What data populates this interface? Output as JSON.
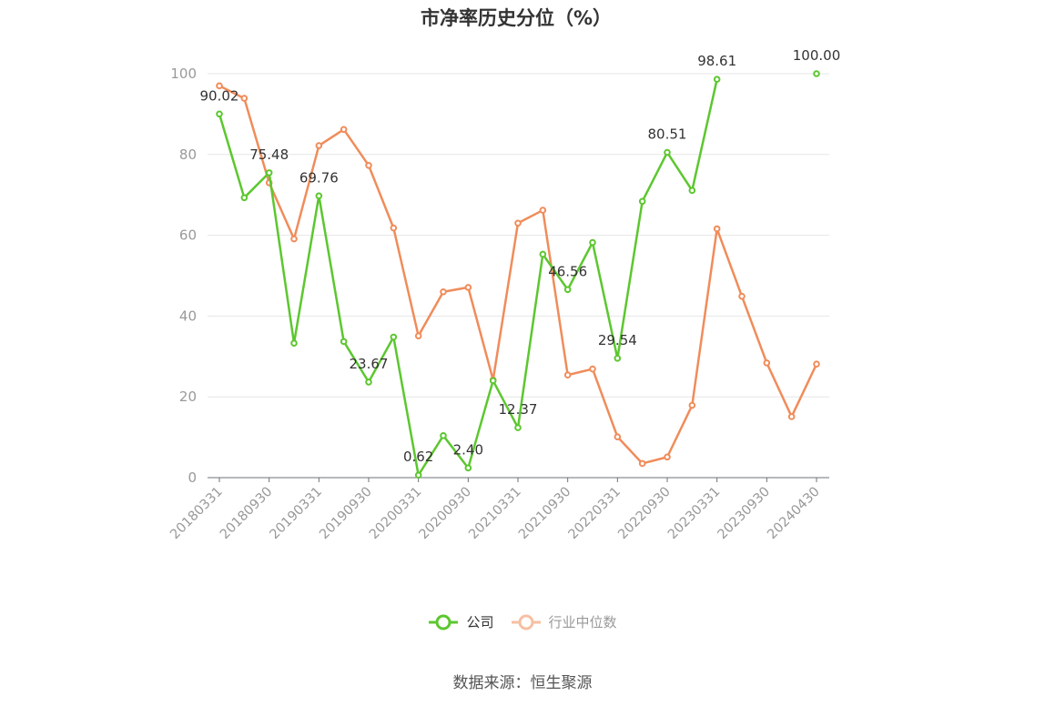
{
  "title": "市净率历史分位（%）",
  "source": "数据来源：恒生聚源",
  "chart_data": {
    "type": "line",
    "title": "市净率历史分位（%）",
    "ylim": [
      0,
      100
    ],
    "yticks": [
      0,
      20,
      40,
      60,
      80,
      100
    ],
    "grid": true,
    "legend_position": "bottom",
    "x": [
      "20180331",
      "20180630",
      "20180930",
      "20181231",
      "20190331",
      "20190630",
      "20190930",
      "20191231",
      "20200331",
      "20200630",
      "20200930",
      "20201231",
      "20210331",
      "20210630",
      "20210930",
      "20211231",
      "20220331",
      "20220630",
      "20220930",
      "20221231",
      "20230331",
      "20230630",
      "20230930",
      "20231231",
      "20240430"
    ],
    "x_tick_labels": [
      "20180331",
      "20180930",
      "20190331",
      "20190930",
      "20200331",
      "20200930",
      "20210331",
      "20210930",
      "20220331",
      "20220930",
      "20230331",
      "20230930",
      "20240430"
    ],
    "series": [
      {
        "name": "公司",
        "color": "#5cc72f",
        "values": [
          90.02,
          69.3,
          75.48,
          33.3,
          69.76,
          33.7,
          23.67,
          34.8,
          0.62,
          10.4,
          2.4,
          24.0,
          12.37,
          55.3,
          46.56,
          58.2,
          29.54,
          68.4,
          80.51,
          71.1,
          98.61,
          null,
          null,
          null,
          100.0
        ],
        "labels": {
          "0": "90.02",
          "2": "75.48",
          "4": "69.76",
          "6": "23.67",
          "8": "0.62",
          "10": "2.40",
          "12": "12.37",
          "14": "46.56",
          "16": "29.54",
          "18": "80.51",
          "20": "98.61",
          "24": "100.00"
        }
      },
      {
        "name": "行业中位数",
        "color": "#f08c5a",
        "values": [
          97.0,
          93.9,
          73.0,
          59.1,
          82.2,
          86.2,
          77.3,
          61.8,
          35.1,
          46.0,
          47.1,
          24.2,
          63.0,
          66.2,
          25.4,
          26.9,
          10.1,
          3.5,
          5.1,
          17.9,
          61.6,
          44.9,
          28.4,
          15.1,
          28.1
        ]
      }
    ]
  }
}
